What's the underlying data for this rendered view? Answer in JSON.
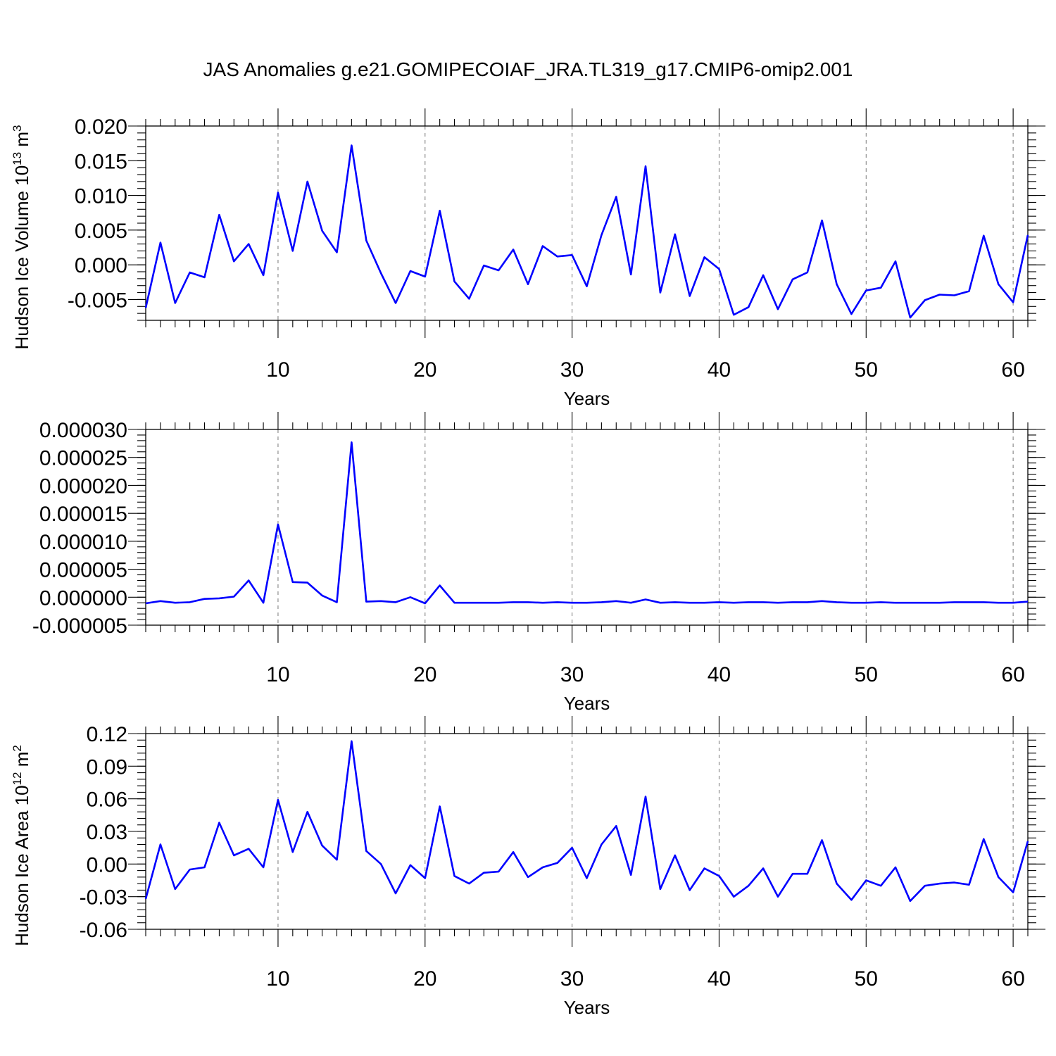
{
  "title": "JAS Anomalies g.e21.GOMIPECOIAF_JRA.TL319_g17.CMIP6-omip2.001",
  "colors": {
    "line": "#0000ff",
    "axis": "#000000",
    "grid": "#777777",
    "background": "#ffffff"
  },
  "chart_data": [
    {
      "type": "line",
      "ylabel_base": "Hudson Ice Volume 10",
      "ylabel_exp": "13",
      "ylabel_unit": " m",
      "ylabel_unit_exp": "3",
      "xlabel": "Years",
      "xlim": [
        1,
        61
      ],
      "ylim": [
        -0.008,
        0.02
      ],
      "xticks": [
        10,
        20,
        30,
        40,
        50,
        60
      ],
      "xtick_labels": [
        "10",
        "20",
        "30",
        "40",
        "50",
        "60"
      ],
      "yticks": [
        0.02,
        0.015,
        0.01,
        0.005,
        0.0,
        -0.005
      ],
      "ytick_labels": [
        "0.020",
        "0.015",
        "0.010",
        "0.005",
        "0.000",
        "-0.005"
      ],
      "yminor_step": 0.001,
      "grid": "dashed vertical at major x ticks",
      "x": [
        1,
        2,
        3,
        4,
        5,
        6,
        7,
        8,
        9,
        10,
        11,
        12,
        13,
        14,
        15,
        16,
        17,
        18,
        19,
        20,
        21,
        22,
        23,
        24,
        25,
        26,
        27,
        28,
        29,
        30,
        31,
        32,
        33,
        34,
        35,
        36,
        37,
        38,
        39,
        40,
        41,
        42,
        43,
        44,
        45,
        46,
        47,
        48,
        49,
        50,
        51,
        52,
        53,
        54,
        55,
        56,
        57,
        58,
        59,
        60,
        61
      ],
      "values": [
        -0.0062,
        0.0032,
        -0.0055,
        -0.0011,
        -0.0018,
        0.0072,
        0.0005,
        0.003,
        -0.0015,
        0.0104,
        0.002,
        0.012,
        0.0049,
        0.0018,
        0.0172,
        0.0035,
        -0.0012,
        -0.0055,
        -0.0009,
        -0.0017,
        0.0078,
        -0.0024,
        -0.0049,
        -0.0001,
        -0.0008,
        0.0022,
        -0.0028,
        0.0027,
        0.0012,
        0.0014,
        -0.0031,
        0.0043,
        0.0098,
        -0.0014,
        0.0142,
        -0.004,
        0.0044,
        -0.0045,
        0.0011,
        -0.0006,
        -0.0072,
        -0.0061,
        -0.0015,
        -0.0064,
        -0.0021,
        -0.0011,
        0.0064,
        -0.0028,
        -0.0071,
        -0.0037,
        -0.0033,
        0.0005,
        -0.0076,
        -0.0051,
        -0.0043,
        -0.0044,
        -0.0038,
        0.0042,
        -0.0028,
        -0.0054,
        0.0043
      ]
    },
    {
      "type": "line",
      "ylabel_base": "",
      "ylabel_exp": "",
      "ylabel_unit": "",
      "ylabel_unit_exp": "",
      "xlabel": "Years",
      "xlim": [
        1,
        61
      ],
      "ylim": [
        -5e-06,
        3e-05
      ],
      "xticks": [
        10,
        20,
        30,
        40,
        50,
        60
      ],
      "xtick_labels": [
        "10",
        "20",
        "30",
        "40",
        "50",
        "60"
      ],
      "yticks": [
        3e-05,
        2.5e-05,
        2e-05,
        1.5e-05,
        1e-05,
        5e-06,
        0.0,
        -5e-06
      ],
      "ytick_labels": [
        "0.000030",
        "0.000025",
        "0.000020",
        "0.000015",
        "0.000010",
        "0.000005",
        "0.000000",
        "-0.000005"
      ],
      "yminor_step": 1e-06,
      "grid": "dashed vertical at major x ticks",
      "x": [
        1,
        2,
        3,
        4,
        5,
        6,
        7,
        8,
        9,
        10,
        11,
        12,
        13,
        14,
        15,
        16,
        17,
        18,
        19,
        20,
        21,
        22,
        23,
        24,
        25,
        26,
        27,
        28,
        29,
        30,
        31,
        32,
        33,
        34,
        35,
        36,
        37,
        38,
        39,
        40,
        41,
        42,
        43,
        44,
        45,
        46,
        47,
        48,
        49,
        50,
        51,
        52,
        53,
        54,
        55,
        56,
        57,
        58,
        59,
        60,
        61
      ],
      "values": [
        -1.1e-06,
        -7e-07,
        -1e-06,
        -9e-07,
        -3e-07,
        -2e-07,
        1e-07,
        3e-06,
        -1e-06,
        1.3e-05,
        2.7e-06,
        2.6e-06,
        3e-07,
        -9e-07,
        2.77e-05,
        -8e-07,
        -7e-07,
        -9e-07,
        0.0,
        -1.1e-06,
        2.1e-06,
        -1e-06,
        -1e-06,
        -1e-06,
        -1e-06,
        -9e-07,
        -9e-07,
        -1e-06,
        -9e-07,
        -1e-06,
        -1e-06,
        -9e-07,
        -7e-07,
        -1e-06,
        -4e-07,
        -1e-06,
        -9e-07,
        -1e-06,
        -1e-06,
        -9e-07,
        -1e-06,
        -9e-07,
        -9e-07,
        -1e-06,
        -9e-07,
        -9e-07,
        -7e-07,
        -9e-07,
        -1e-06,
        -1e-06,
        -9e-07,
        -1e-06,
        -1e-06,
        -1e-06,
        -1e-06,
        -9e-07,
        -9e-07,
        -9e-07,
        -1e-06,
        -1e-06,
        -8e-07
      ]
    },
    {
      "type": "line",
      "ylabel_base": "Hudson Ice Area 10",
      "ylabel_exp": "12",
      "ylabel_unit": " m",
      "ylabel_unit_exp": "2",
      "xlabel": "Years",
      "xlim": [
        1,
        61
      ],
      "ylim": [
        -0.06,
        0.12
      ],
      "xticks": [
        10,
        20,
        30,
        40,
        50,
        60
      ],
      "xtick_labels": [
        "10",
        "20",
        "30",
        "40",
        "50",
        "60"
      ],
      "yticks": [
        0.12,
        0.09,
        0.06,
        0.03,
        0.0,
        -0.03,
        -0.06
      ],
      "ytick_labels": [
        "0.12",
        "0.09",
        "0.06",
        "0.03",
        "0.00",
        "-0.03",
        "-0.06"
      ],
      "yminor_step": 0.006,
      "grid": "dashed vertical at major x ticks",
      "x": [
        1,
        2,
        3,
        4,
        5,
        6,
        7,
        8,
        9,
        10,
        11,
        12,
        13,
        14,
        15,
        16,
        17,
        18,
        19,
        20,
        21,
        22,
        23,
        24,
        25,
        26,
        27,
        28,
        29,
        30,
        31,
        32,
        33,
        34,
        35,
        36,
        37,
        38,
        39,
        40,
        41,
        42,
        43,
        44,
        45,
        46,
        47,
        48,
        49,
        50,
        51,
        52,
        53,
        54,
        55,
        56,
        57,
        58,
        59,
        60,
        61
      ],
      "values": [
        -0.032,
        0.018,
        -0.023,
        -0.005,
        -0.003,
        0.038,
        0.008,
        0.014,
        -0.003,
        0.059,
        0.011,
        0.048,
        0.017,
        0.004,
        0.113,
        0.012,
        0.0,
        -0.027,
        -0.001,
        -0.013,
        0.053,
        -0.011,
        -0.018,
        -0.008,
        -0.007,
        0.011,
        -0.012,
        -0.003,
        0.001,
        0.015,
        -0.013,
        0.018,
        0.035,
        -0.01,
        0.062,
        -0.023,
        0.008,
        -0.024,
        -0.004,
        -0.011,
        -0.03,
        -0.02,
        -0.004,
        -0.03,
        -0.009,
        -0.009,
        0.022,
        -0.018,
        -0.033,
        -0.015,
        -0.02,
        -0.003,
        -0.034,
        -0.02,
        -0.018,
        -0.017,
        -0.019,
        0.023,
        -0.012,
        -0.026,
        0.021
      ]
    }
  ]
}
